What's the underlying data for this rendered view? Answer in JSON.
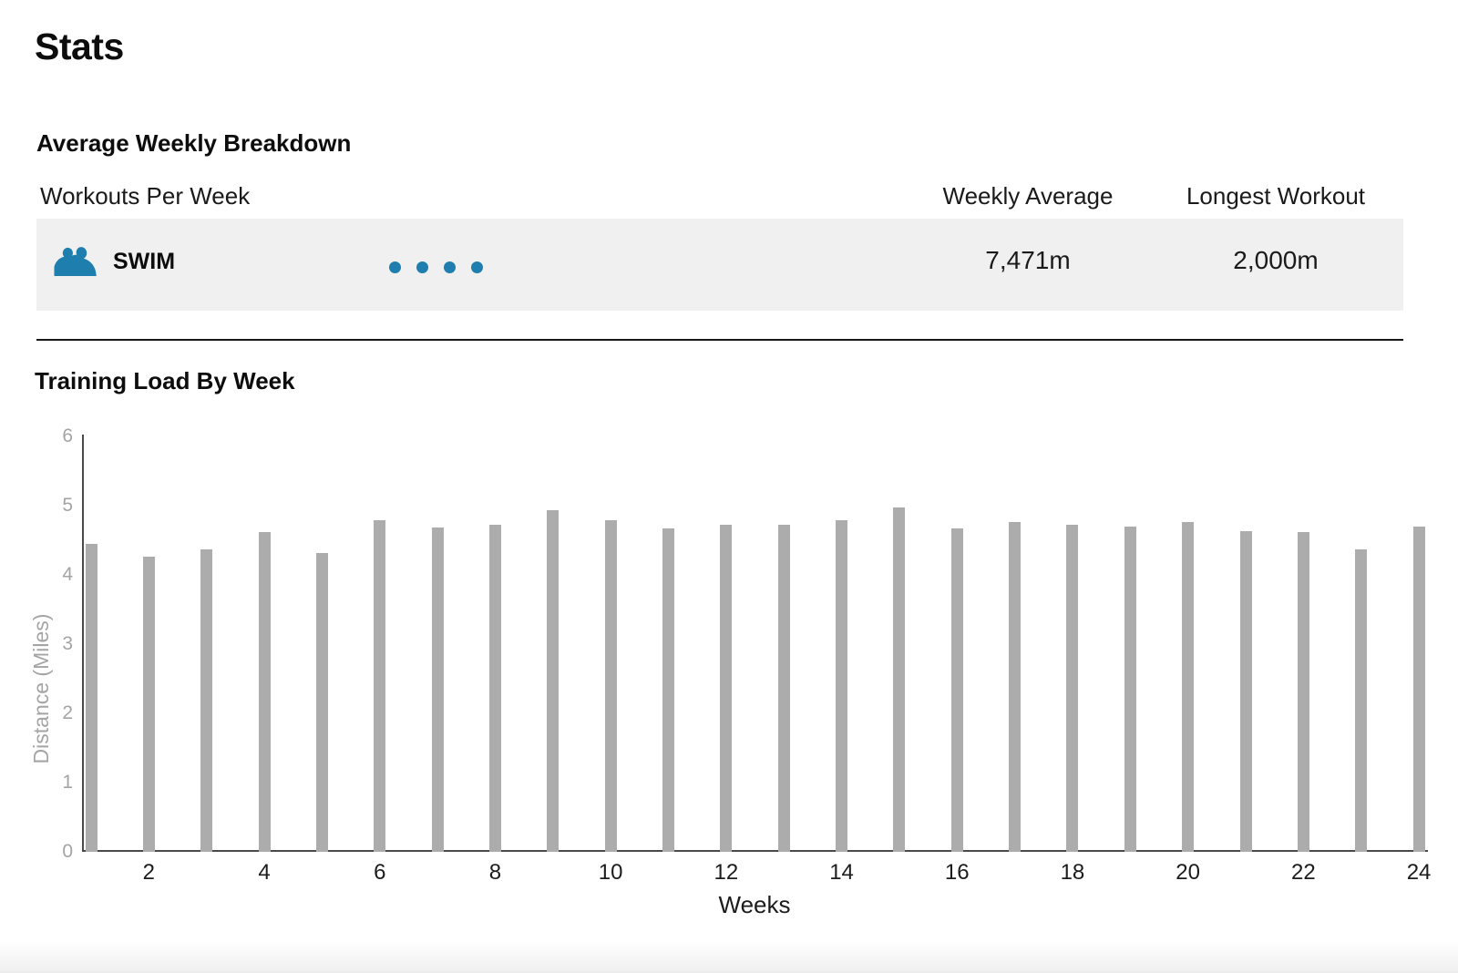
{
  "page": {
    "title": "Stats"
  },
  "breakdown": {
    "heading": "Average Weekly Breakdown",
    "columns": {
      "workouts": "Workouts Per Week",
      "weekly_average": "Weekly Average",
      "longest_workout": "Longest Workout"
    },
    "row": {
      "sport": "SWIM",
      "icon": "wave-icon",
      "workouts_per_week_dots": 4,
      "weekly_average": "7,471m",
      "longest_workout": "2,000m"
    }
  },
  "chart_section": {
    "heading": "Training Load By Week"
  },
  "chart_data": {
    "type": "bar",
    "title": "Training Load By Week",
    "xlabel": "Weeks",
    "ylabel": "Distance (Miles)",
    "ylim": [
      0,
      6
    ],
    "yticks": [
      0,
      1,
      2,
      3,
      4,
      5,
      6
    ],
    "xticks": [
      2,
      4,
      6,
      8,
      10,
      12,
      14,
      16,
      18,
      20,
      22,
      24
    ],
    "grid": false,
    "legend": false,
    "categories": [
      1,
      2,
      3,
      4,
      5,
      6,
      7,
      8,
      9,
      10,
      11,
      12,
      13,
      14,
      15,
      16,
      17,
      18,
      19,
      20,
      21,
      22,
      23,
      24
    ],
    "values": [
      4.45,
      4.26,
      4.37,
      4.62,
      4.32,
      4.79,
      4.68,
      4.73,
      4.93,
      4.79,
      4.67,
      4.73,
      4.73,
      4.79,
      4.97,
      4.67,
      4.76,
      4.73,
      4.7,
      4.76,
      4.63,
      4.62,
      4.37,
      4.7
    ]
  },
  "colors": {
    "accent_blue": "#1e7ead",
    "row_bg": "#f0f0f0",
    "bar_gray": "#acacac",
    "axis_label_gray": "#a4a4a4",
    "axis_line_gray": "#4a4a4a",
    "text_dark": "#1a1a1a"
  }
}
